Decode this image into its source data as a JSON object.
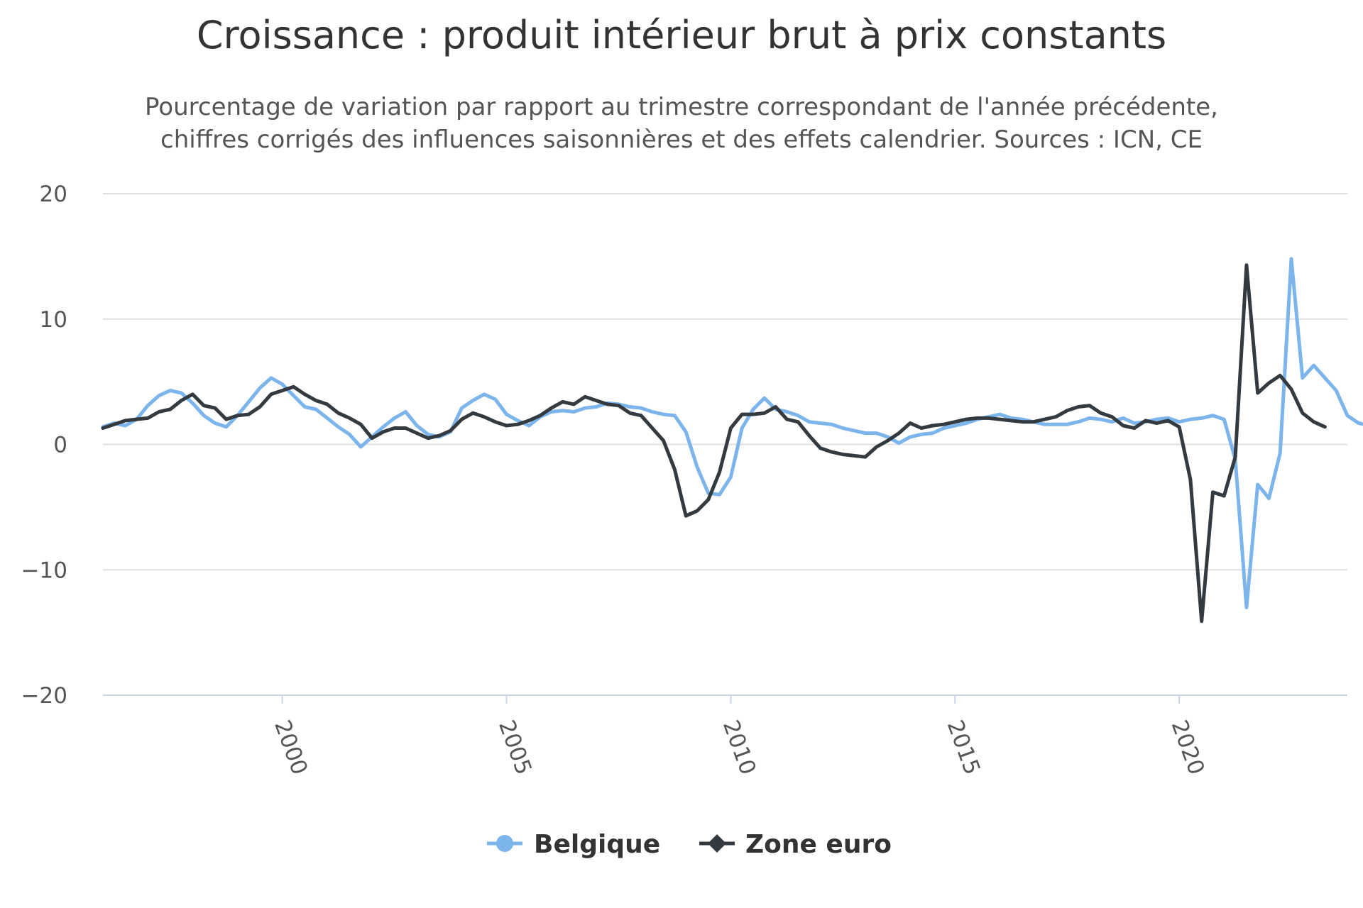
{
  "chart_data": {
    "type": "line",
    "title": "Croissance : produit intérieur brut à prix constants",
    "subtitle_lines": [
      "Pourcentage de variation par rapport au trimestre correspondant de l'année précédente,",
      "chiffres corrigés des influences saisonnières et des effets calendrier. Sources : ICN, CE"
    ],
    "xlabel": "",
    "ylabel": "",
    "xlim": [
      1996,
      2023.75
    ],
    "ylim": [
      -20,
      20
    ],
    "y_ticks": [
      20,
      10,
      0,
      -10,
      -20
    ],
    "y_tick_labels": [
      "20",
      "10",
      "0",
      "−10",
      "−20"
    ],
    "x_ticks": [
      2000,
      2005,
      2010,
      2015,
      2020
    ],
    "x_tick_labels": [
      "2000",
      "2005",
      "2010",
      "2015",
      "2020"
    ],
    "grid": true,
    "legend_placement": "bottom-center",
    "x_start": 1996,
    "x_step": 0.25,
    "series": [
      {
        "name": "Belgique",
        "color": "#7cb5ec",
        "marker": "circle",
        "values": [
          1.4,
          1.7,
          1.5,
          2.0,
          3.1,
          3.9,
          4.3,
          4.1,
          3.3,
          2.3,
          1.7,
          1.4,
          2.3,
          3.4,
          4.5,
          5.3,
          4.8,
          3.9,
          3.0,
          2.8,
          2.1,
          1.4,
          0.8,
          -0.2,
          0.6,
          1.4,
          2.1,
          2.6,
          1.5,
          0.8,
          0.6,
          1.0,
          2.9,
          3.5,
          4.0,
          3.6,
          2.4,
          1.9,
          1.5,
          2.2,
          2.6,
          2.7,
          2.6,
          2.9,
          3.0,
          3.3,
          3.2,
          3.0,
          2.9,
          2.6,
          2.4,
          2.3,
          1.0,
          -1.8,
          -3.9,
          -4.0,
          -2.6,
          1.3,
          2.8,
          3.7,
          2.8,
          2.6,
          2.3,
          1.8,
          1.7,
          1.6,
          1.3,
          1.1,
          0.9,
          0.9,
          0.6,
          0.1,
          0.6,
          0.8,
          0.9,
          1.3,
          1.5,
          1.7,
          2.0,
          2.2,
          2.4,
          2.1,
          2.0,
          1.8,
          1.6,
          1.6,
          1.6,
          1.8,
          2.1,
          2.0,
          1.8,
          2.1,
          1.7,
          1.8,
          2.0,
          2.1,
          1.8,
          2.0,
          2.1,
          2.3,
          2.0,
          -1.2,
          -13.0,
          -3.2,
          -4.3,
          -0.7,
          14.8,
          5.3,
          6.3,
          5.3,
          4.3,
          2.3,
          1.7,
          1.5
        ]
      },
      {
        "name": "Zone euro",
        "color": "#333a40",
        "marker": "diamond",
        "values": [
          1.3,
          1.6,
          1.9,
          2.0,
          2.1,
          2.6,
          2.8,
          3.5,
          4.0,
          3.1,
          2.9,
          2.0,
          2.3,
          2.4,
          3.0,
          4.0,
          4.3,
          4.6,
          4.0,
          3.5,
          3.2,
          2.5,
          2.1,
          1.6,
          0.5,
          1.0,
          1.3,
          1.3,
          0.9,
          0.5,
          0.7,
          1.1,
          2.0,
          2.5,
          2.2,
          1.8,
          1.5,
          1.6,
          1.9,
          2.3,
          2.9,
          3.4,
          3.2,
          3.8,
          3.5,
          3.2,
          3.1,
          2.5,
          2.3,
          1.3,
          0.3,
          -2.0,
          -5.7,
          -5.3,
          -4.4,
          -2.2,
          1.3,
          2.4,
          2.4,
          2.5,
          3.0,
          2.0,
          1.8,
          0.7,
          -0.3,
          -0.6,
          -0.8,
          -0.9,
          -1.0,
          -0.2,
          0.3,
          0.9,
          1.7,
          1.3,
          1.5,
          1.6,
          1.8,
          2.0,
          2.1,
          2.1,
          2.0,
          1.9,
          1.8,
          1.8,
          2.0,
          2.2,
          2.7,
          3.0,
          3.1,
          2.5,
          2.2,
          1.5,
          1.3,
          1.9,
          1.7,
          1.9,
          1.4,
          -2.8,
          -14.1,
          -3.8,
          -4.1,
          -1.0,
          14.3,
          4.1,
          4.9,
          5.5,
          4.4,
          2.5,
          1.8,
          1.4
        ]
      }
    ]
  }
}
